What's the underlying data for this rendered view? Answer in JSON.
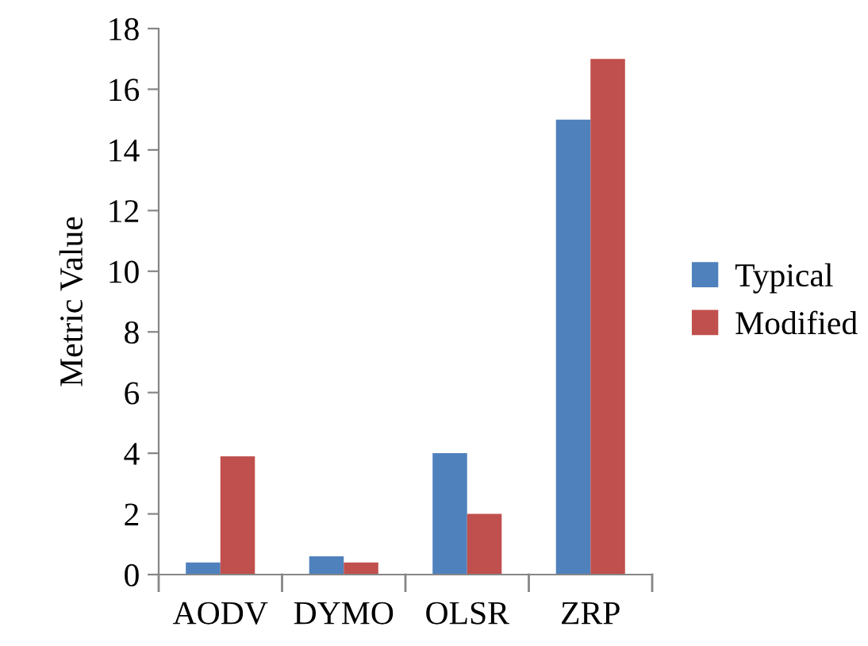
{
  "chart_data": {
    "type": "bar",
    "ylabel": "Metric Value",
    "categories": [
      "AODV",
      "DYMO",
      "OLSR",
      "ZRP"
    ],
    "series": [
      {
        "name": "Typical",
        "color": "#4f81bd",
        "values": [
          0.4,
          0.6,
          4.0,
          15.0
        ]
      },
      {
        "name": "Modified",
        "color": "#c0504d",
        "values": [
          3.9,
          0.4,
          2.0,
          17.0
        ]
      }
    ],
    "ylim": [
      0,
      18
    ],
    "yticks": [
      0,
      2,
      4,
      6,
      8,
      10,
      12,
      14,
      16,
      18
    ],
    "grid": false,
    "legend": "right"
  }
}
